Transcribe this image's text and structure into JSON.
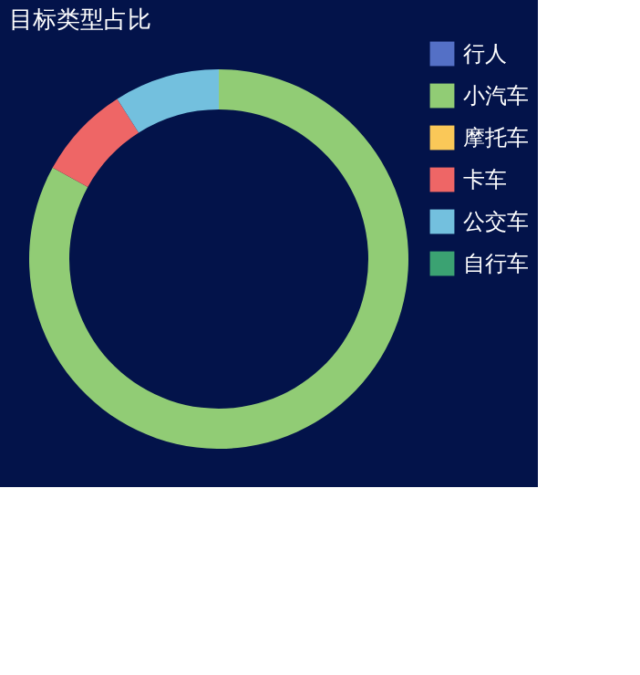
{
  "chart_data": {
    "type": "donut",
    "title": "目标类型占比",
    "categories": [
      "行人",
      "小汽车",
      "摩托车",
      "卡车",
      "公交车",
      "自行车"
    ],
    "values": [
      0,
      83,
      0,
      8,
      9,
      0
    ],
    "colors": [
      "#5470c6",
      "#91cc75",
      "#fac858",
      "#ee6666",
      "#73c0de",
      "#3ba272"
    ],
    "legend": "right"
  }
}
